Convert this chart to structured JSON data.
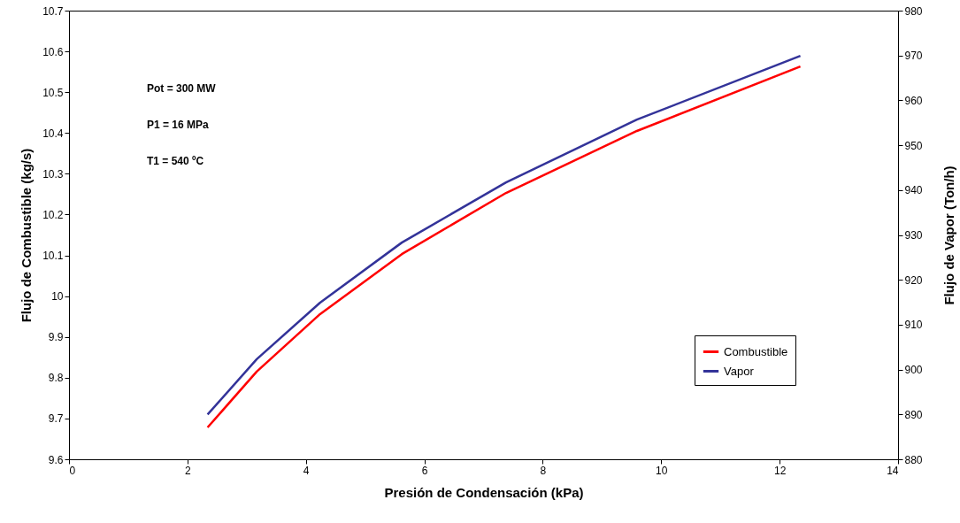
{
  "chart_data": {
    "type": "line",
    "xlabel": "Presión de Condensación (kPa)",
    "ylabel": "Flujo de Combustible (kg/s)",
    "y2label": "Flujo de Vapor (Ton/h)",
    "x": [
      2.34,
      3.17,
      4.24,
      5.62,
      7.38,
      9.59,
      12.35
    ],
    "series": [
      {
        "name": "Combustible",
        "color": "#ff0000",
        "values": [
          9.678,
          9.815,
          9.956,
          10.103,
          10.253,
          10.405,
          10.563
        ]
      },
      {
        "name": "Vapor",
        "color": "#333399",
        "axis": "y2",
        "values": [
          890,
          902.3,
          914.9,
          928.3,
          941.7,
          955.7,
          969.9
        ]
      }
    ],
    "xlim": [
      0,
      14
    ],
    "xticks": [
      0,
      2,
      4,
      6,
      8,
      10,
      12,
      14
    ],
    "ylim": [
      9.6,
      10.7
    ],
    "yticks": [
      9.6,
      9.7,
      9.8,
      9.9,
      {
        "value": 10,
        "label": "10"
      },
      10.1,
      10.2,
      10.3,
      10.4,
      10.5,
      10.6,
      10.7
    ],
    "y2lim": [
      880,
      980
    ],
    "y2ticks": [
      880,
      890,
      900,
      910,
      920,
      930,
      940,
      950,
      960,
      970,
      980
    ],
    "annotations": [
      "Pot = 300 MW",
      "P1 = 16 MPa",
      "T1 = 540 ºC"
    ],
    "legend": "bottom right",
    "grid": false,
    "marker": "none",
    "line_style": "solid"
  }
}
